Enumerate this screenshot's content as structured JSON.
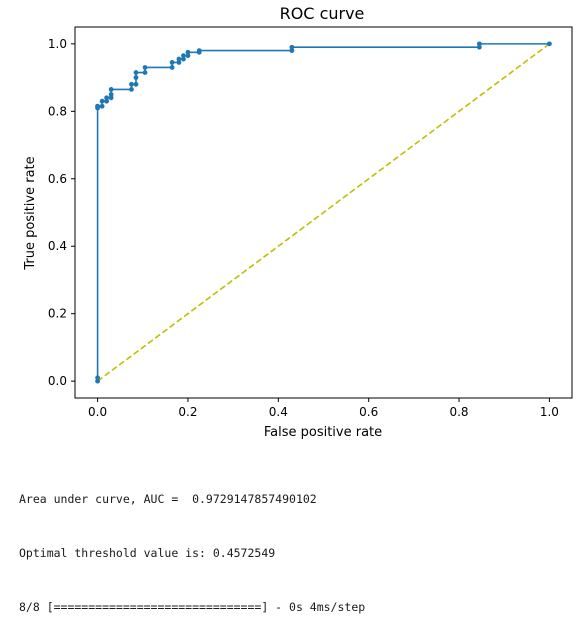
{
  "chart_data": {
    "type": "line",
    "title": "ROC curve",
    "xlabel": "False positive rate",
    "ylabel": "True positive rate",
    "xlim": [
      -0.05,
      1.05
    ],
    "ylim": [
      -0.05,
      1.05
    ],
    "xticks": [
      "0.0",
      "0.2",
      "0.4",
      "0.6",
      "0.8",
      "1.0"
    ],
    "yticks": [
      "0.0",
      "0.2",
      "0.4",
      "0.6",
      "0.8",
      "1.0"
    ],
    "grid": false,
    "series": [
      {
        "style": "solid-line-with-dot-markers",
        "color": "#1f77b4",
        "x": [
          0.0,
          0.0,
          0.0,
          0.0,
          0.0,
          0.01,
          0.01,
          0.02,
          0.02,
          0.03,
          0.03,
          0.03,
          0.075,
          0.075,
          0.085,
          0.085,
          0.085,
          0.105,
          0.105,
          0.165,
          0.165,
          0.18,
          0.18,
          0.19,
          0.19,
          0.2,
          0.2,
          0.225,
          0.225,
          0.43,
          0.43,
          0.845,
          0.845,
          1.0
        ],
        "y": [
          0.0,
          0.01,
          0.81,
          0.815,
          0.815,
          0.815,
          0.83,
          0.83,
          0.84,
          0.84,
          0.85,
          0.865,
          0.865,
          0.88,
          0.88,
          0.9,
          0.915,
          0.915,
          0.93,
          0.93,
          0.945,
          0.945,
          0.955,
          0.955,
          0.965,
          0.965,
          0.975,
          0.975,
          0.98,
          0.98,
          0.99,
          0.99,
          1.0,
          1.0
        ]
      },
      {
        "style": "dashed-line",
        "color": "#bfbf00",
        "x": [
          0.0,
          1.0
        ],
        "y": [
          0.0,
          1.0
        ]
      }
    ]
  },
  "console": {
    "auc_line": "Area under curve, AUC =  0.9729147857490102",
    "threshold_line": "Optimal threshold value is: 0.4572549",
    "progress_line": "8/8 [==============================] - 0s 4ms/step"
  }
}
